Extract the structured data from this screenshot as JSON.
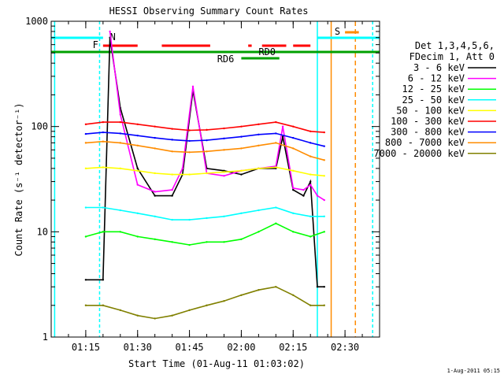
{
  "chart_data": {
    "type": "line",
    "title": "HESSI Observing Summary Count Rates",
    "xlabel": "Start Time (01-Aug-11 01:03:02)",
    "ylabel": "Count Rate (s⁻¹ detector⁻¹)",
    "y_scale": "log",
    "ylim": [
      1,
      1000
    ],
    "xlim": [
      "01:05",
      "02:40"
    ],
    "x_ticks": [
      "01:15",
      "01:30",
      "01:45",
      "02:00",
      "02:15",
      "02:30"
    ],
    "y_ticks": [
      "1",
      "10",
      "100",
      "1000"
    ],
    "legend_header": [
      "Det 1,3,4,5,6,",
      "FDecim 1, Att 0"
    ],
    "legend_position": "right",
    "timestamp": "1-Aug-2011 05:15",
    "flags": {
      "N": {
        "label": "N",
        "color": "#00ffff"
      },
      "F": {
        "label": "F",
        "color": "#ff0000"
      },
      "RD0": {
        "label": "RD0",
        "color": "#00a000"
      },
      "RD6": {
        "label": "RD6",
        "color": "#00a000"
      },
      "S": {
        "label": "S",
        "color": "#ff8c00"
      }
    },
    "series": [
      {
        "name": "3 - 6 keV",
        "color": "#000000",
        "x": [
          "01:15",
          "01:20",
          "01:22",
          "01:25",
          "01:30",
          "01:35",
          "01:40",
          "01:43",
          "01:46",
          "01:50",
          "01:55",
          "02:00",
          "02:05",
          "02:10",
          "02:12",
          "02:15",
          "02:18",
          "02:20",
          "02:22",
          "02:24"
        ],
        "values": [
          3.5,
          3.5,
          700,
          150,
          40,
          22,
          22,
          35,
          220,
          40,
          38,
          35,
          40,
          40,
          80,
          25,
          22,
          30,
          3,
          3
        ]
      },
      {
        "name": "6 - 12 keV",
        "color": "#ff00ff",
        "x": [
          "01:15",
          "01:20",
          "01:22",
          "01:25",
          "01:30",
          "01:35",
          "01:40",
          "01:43",
          "01:46",
          "01:50",
          "01:55",
          "02:00",
          "02:05",
          "02:10",
          "02:12",
          "02:15",
          "02:18",
          "02:20",
          "02:22",
          "02:24"
        ],
        "values": [
          null,
          null,
          800,
          130,
          28,
          24,
          25,
          40,
          240,
          36,
          34,
          38,
          40,
          42,
          100,
          26,
          25,
          28,
          22,
          20
        ]
      },
      {
        "name": "12 - 25 keV",
        "color": "#00ff00",
        "x": [
          "01:15",
          "01:20",
          "01:25",
          "01:30",
          "01:35",
          "01:40",
          "01:45",
          "01:50",
          "01:55",
          "02:00",
          "02:05",
          "02:10",
          "02:15",
          "02:20",
          "02:24"
        ],
        "values": [
          9,
          10,
          10,
          9,
          8.5,
          8,
          7.5,
          8,
          8,
          8.5,
          10,
          12,
          10,
          9,
          10
        ]
      },
      {
        "name": "25 - 50 keV",
        "color": "#00ffff",
        "x": [
          "01:15",
          "01:20",
          "01:25",
          "01:30",
          "01:35",
          "01:40",
          "01:45",
          "01:50",
          "01:55",
          "02:00",
          "02:05",
          "02:10",
          "02:15",
          "02:20",
          "02:24"
        ],
        "values": [
          17,
          17,
          16,
          15,
          14,
          13,
          13,
          13.5,
          14,
          15,
          16,
          17,
          15,
          14,
          14
        ]
      },
      {
        "name": "50 - 100 keV",
        "color": "#ffff00",
        "x": [
          "01:15",
          "01:20",
          "01:25",
          "01:30",
          "01:35",
          "01:40",
          "01:45",
          "01:50",
          "01:55",
          "02:00",
          "02:05",
          "02:10",
          "02:15",
          "02:20",
          "02:24"
        ],
        "values": [
          40,
          41,
          40,
          38,
          36,
          35,
          35,
          36,
          37,
          38,
          40,
          41,
          38,
          35,
          34
        ]
      },
      {
        "name": "100 - 300 keV",
        "color": "#ff0000",
        "x": [
          "01:15",
          "01:20",
          "01:25",
          "01:30",
          "01:35",
          "01:40",
          "01:45",
          "01:50",
          "01:55",
          "02:00",
          "02:05",
          "02:10",
          "02:15",
          "02:20",
          "02:24"
        ],
        "values": [
          105,
          110,
          110,
          105,
          100,
          95,
          92,
          93,
          96,
          100,
          105,
          110,
          100,
          90,
          88
        ]
      },
      {
        "name": "300 - 800 keV",
        "color": "#0000ff",
        "x": [
          "01:15",
          "01:20",
          "01:25",
          "01:30",
          "01:35",
          "01:40",
          "01:45",
          "01:50",
          "01:55",
          "02:00",
          "02:05",
          "02:10",
          "02:15",
          "02:20",
          "02:24"
        ],
        "values": [
          85,
          88,
          86,
          82,
          78,
          75,
          73,
          74,
          77,
          80,
          84,
          86,
          78,
          70,
          65
        ]
      },
      {
        "name": "800 - 7000 keV",
        "color": "#ff8c00",
        "x": [
          "01:15",
          "01:20",
          "01:25",
          "01:30",
          "01:35",
          "01:40",
          "01:45",
          "01:50",
          "01:55",
          "02:00",
          "02:05",
          "02:10",
          "02:15",
          "02:20",
          "02:24"
        ],
        "values": [
          70,
          72,
          70,
          66,
          62,
          58,
          57,
          58,
          60,
          62,
          66,
          70,
          62,
          52,
          48
        ]
      },
      {
        "name": "7000 - 20000 keV",
        "color": "#808000",
        "x": [
          "01:15",
          "01:20",
          "01:25",
          "01:30",
          "01:35",
          "01:40",
          "01:45",
          "01:50",
          "01:55",
          "02:00",
          "02:05",
          "02:10",
          "02:15",
          "02:20",
          "02:24"
        ],
        "values": [
          2,
          2,
          1.8,
          1.6,
          1.5,
          1.6,
          1.8,
          2,
          2.2,
          2.5,
          2.8,
          3,
          2.5,
          2,
          2
        ]
      }
    ]
  }
}
